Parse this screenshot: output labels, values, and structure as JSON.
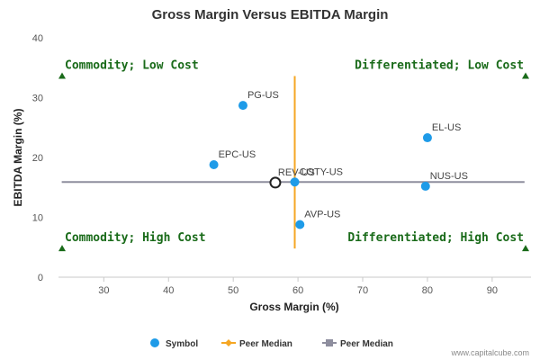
{
  "chart_data": {
    "type": "scatter",
    "title": "Gross Margin Versus EBITDA Margin",
    "xlabel": "Gross Margin (%)",
    "ylabel": "EBITDA Margin (%)",
    "xlim": [
      23,
      96
    ],
    "ylim": [
      0,
      40
    ],
    "xticks": [
      30,
      40,
      50,
      60,
      70,
      80,
      90
    ],
    "yticks": [
      0,
      10,
      20,
      30,
      40
    ],
    "grid": false,
    "legend_position": "bottom",
    "colors": {
      "symbol": "#1e9be8",
      "peer_median_x": "#f5a623",
      "peer_median_y": "#8e8e9e",
      "quadrant_text": "#1a6b1a",
      "quadrant_marker": "#1a6b1a",
      "subject_marker": "#222222"
    },
    "points": [
      {
        "label": "PG-US",
        "x": 51.5,
        "y": 28.7
      },
      {
        "label": "EPC-US",
        "x": 47.0,
        "y": 18.8
      },
      {
        "label": "COTY-US",
        "x": 59.5,
        "y": 15.9
      },
      {
        "label": "EL-US",
        "x": 80.0,
        "y": 23.3
      },
      {
        "label": "NUS-US",
        "x": 79.7,
        "y": 15.2
      },
      {
        "label": "AVP-US",
        "x": 60.3,
        "y": 8.8
      }
    ],
    "subject": {
      "label": "REV-US",
      "x": 56.5,
      "y": 15.8
    },
    "peer_median_x": {
      "value": 59.5,
      "y_range": [
        4.8,
        33.6
      ]
    },
    "peer_median_y": {
      "value": 15.9,
      "x_range": [
        23.5,
        95
      ]
    },
    "quadrants": [
      {
        "label": "Commodity; Low Cost",
        "anchor": "left",
        "y": 33.6
      },
      {
        "label": "Differentiated; Low Cost",
        "anchor": "right",
        "y": 33.6
      },
      {
        "label": "Commodity; High Cost",
        "anchor": "left",
        "y": 4.8
      },
      {
        "label": "Differentiated; High Cost",
        "anchor": "right",
        "y": 4.8
      }
    ],
    "legend": [
      {
        "label": "Symbol",
        "kind": "dot"
      },
      {
        "label": "Peer Median",
        "kind": "line-diamond"
      },
      {
        "label": "Peer Median",
        "kind": "line-square"
      }
    ]
  },
  "credit": "www.capitalcube.com"
}
